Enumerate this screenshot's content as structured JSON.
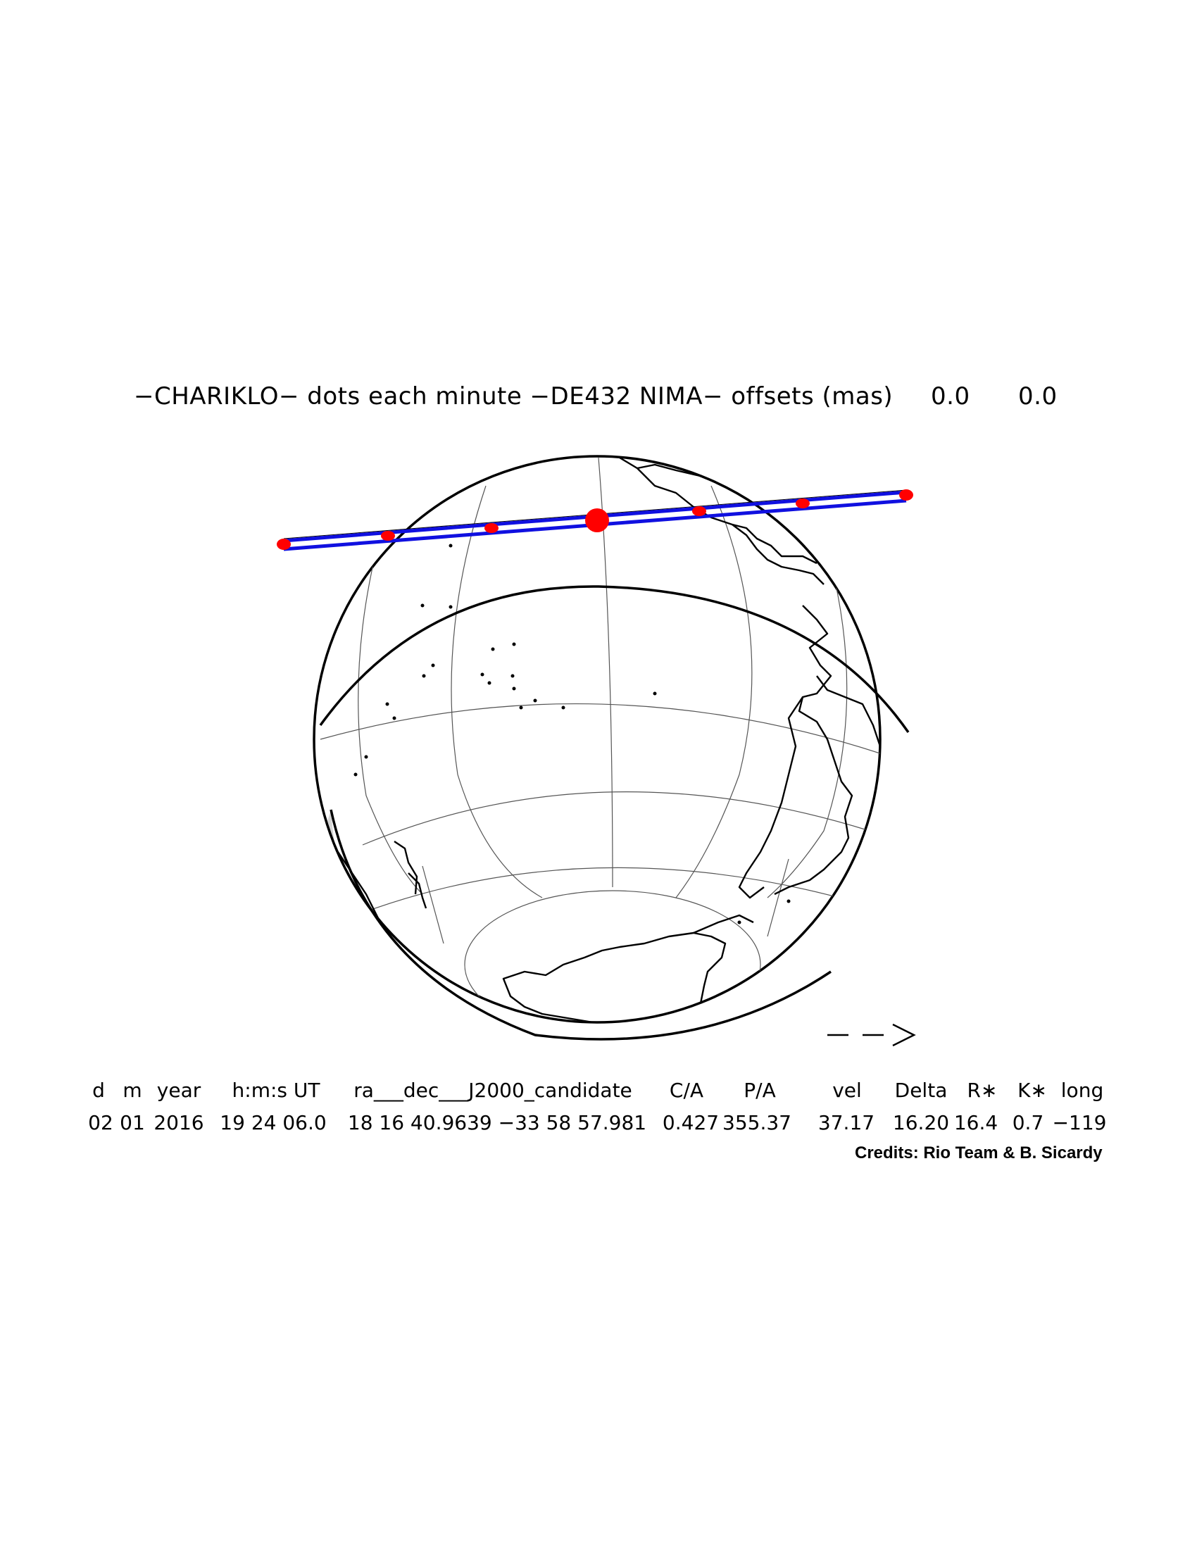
{
  "title": {
    "text": "−CHARIKLO− dots each minute −DE432 NIMA− offsets (mas)",
    "offset_1": "0.0",
    "offset_2": "0.0"
  },
  "direction_arrow": "−−>",
  "table": {
    "headers": [
      "d",
      "m",
      "year",
      "h:m:s UT",
      "ra___dec___J2000_candidate",
      "C/A",
      "P/A",
      "vel",
      "Delta",
      "R∗",
      "K∗",
      "long"
    ],
    "values": [
      "02",
      "01",
      "2016",
      "19 24 06.0",
      "18 16 40.9639 −33 58 57.981",
      "0.427",
      "355.37",
      "37.17",
      "16.20",
      "16.4",
      "0.7",
      "−119"
    ]
  },
  "credits": "Credits: Rio Team & B. Sicardy",
  "colors": {
    "shadow_path": "#1010e0",
    "minute_dots": "#ff0000",
    "coastline": "#000000",
    "graticule": "#555555",
    "night_shade": "#d0d0d0"
  },
  "icons": [
    "globe-icon",
    "arrow-right-icon"
  ]
}
